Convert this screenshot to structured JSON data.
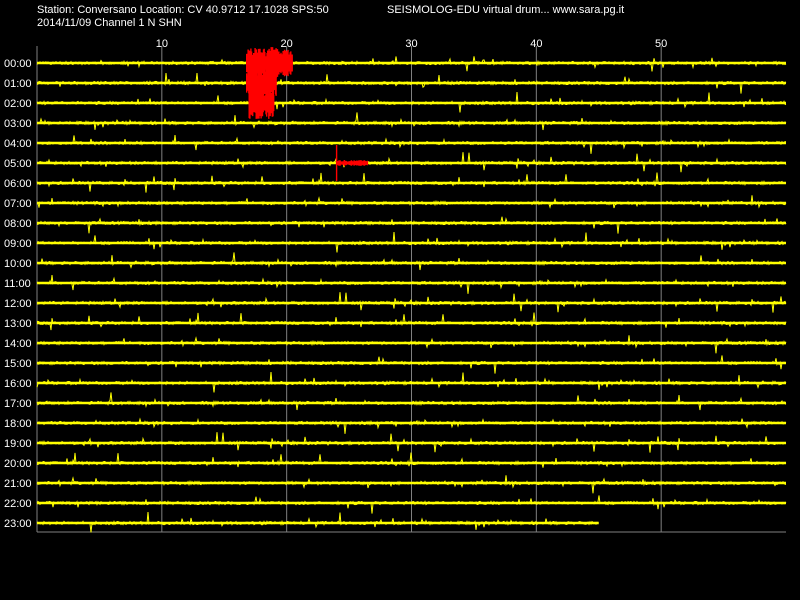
{
  "header": {
    "station_info": "Station: Conversano Location: CV 40.9712 17.1028 SPS:50",
    "product": "SEISMOLOG-EDU virtual drum... www.sara.pg.it",
    "date_channel": "2014/11/09  Channel 1 N SHN"
  },
  "chart_data": {
    "type": "line",
    "title": "",
    "xlabel": "",
    "ylabel": "",
    "xlim": [
      0,
      60
    ],
    "x_ticks": [
      10,
      20,
      30,
      40,
      50
    ],
    "rows": [
      "00:00",
      "01:00",
      "02:00",
      "03:00",
      "04:00",
      "05:00",
      "06:00",
      "07:00",
      "08:00",
      "09:00",
      "10:00",
      "11:00",
      "12:00",
      "13:00",
      "14:00",
      "15:00",
      "16:00",
      "17:00",
      "18:00",
      "19:00",
      "20:00",
      "21:00",
      "22:00",
      "23:00"
    ],
    "last_row_end_minute": 45,
    "grid": true,
    "colors": {
      "background": "#000000",
      "trace": "#ffff00",
      "event": "#ff0000",
      "grid": "#808080",
      "text": "#ffffff"
    },
    "events": [
      {
        "row": "00:00",
        "start_minute": 16.8,
        "end_minute": 20.5,
        "label": ""
      },
      {
        "row": "01:00",
        "start_minute": 16.8,
        "end_minute": 19.2,
        "label": ""
      },
      {
        "row": "02:00",
        "start_minute": 17.0,
        "end_minute": 19.0,
        "label": ""
      },
      {
        "row": "05:00",
        "start_minute": 24.0,
        "end_minute": 26.5,
        "label": ""
      }
    ]
  }
}
